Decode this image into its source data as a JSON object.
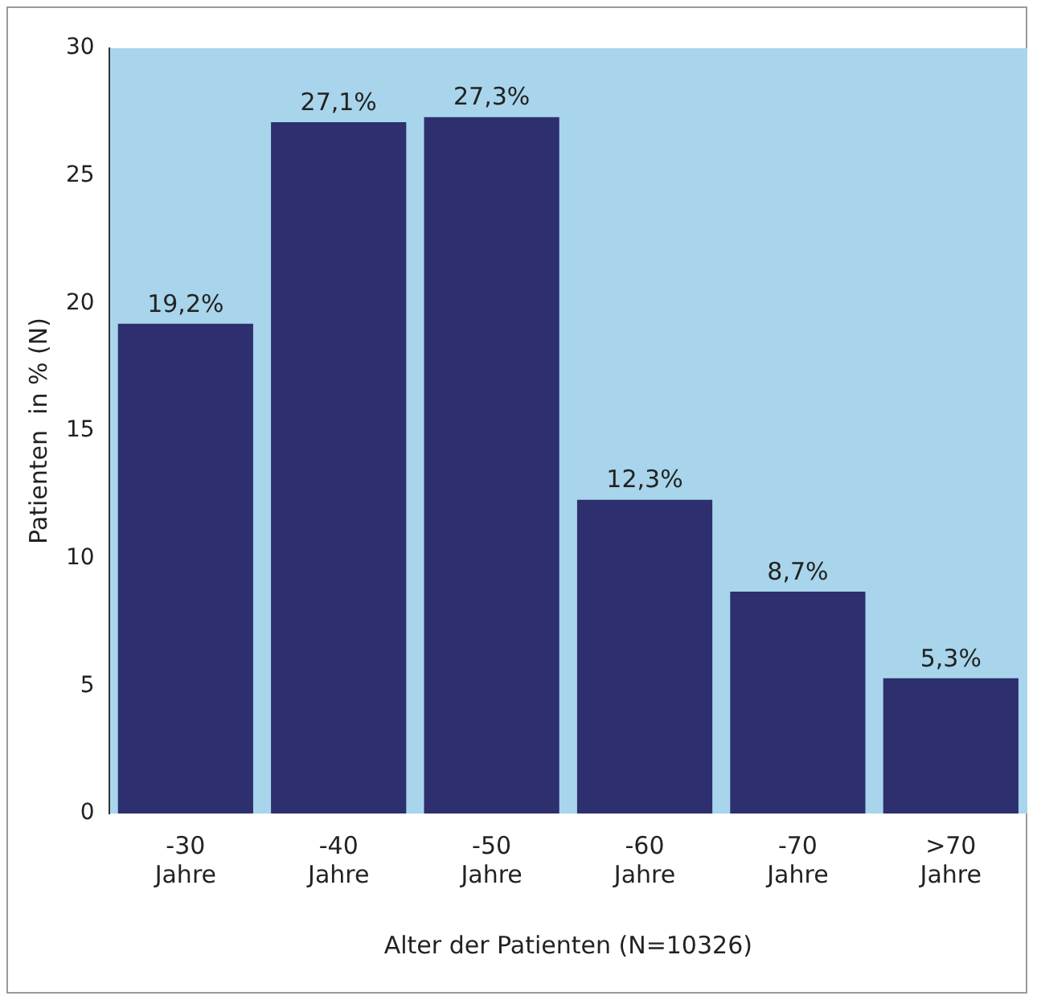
{
  "chart_data": {
    "type": "bar",
    "xlabel": "Alter der Patienten (N=10326)",
    "ylabel": "Patienten  in % (N)",
    "categories": [
      "-30 Jahre",
      "-40 Jahre",
      "-50 Jahre",
      "-60 Jahre",
      "-70 Jahre",
      ">70 Jahre"
    ],
    "values": [
      19.2,
      27.1,
      27.3,
      12.3,
      8.7,
      5.3
    ],
    "value_labels": [
      "19,2%",
      "27,1%",
      "27,3%",
      "12,3%",
      "8,7%",
      "5,3%"
    ],
    "color": "#2d2f6e",
    "ylim": [
      0,
      30
    ],
    "yticks": [
      0,
      5,
      10,
      15,
      20,
      25,
      30
    ],
    "grid": false,
    "legend": false
  }
}
